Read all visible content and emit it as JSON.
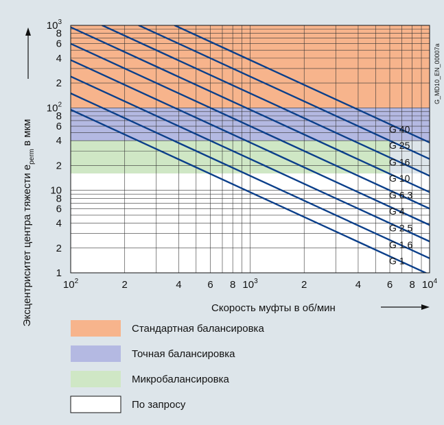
{
  "chart_data": {
    "type": "line",
    "x_scale": "log",
    "y_scale": "log",
    "xlim": [
      100,
      10000
    ],
    "ylim": [
      1,
      1000
    ],
    "xlabel": "Скорость муфты в об/мин",
    "ylabel_main": "Эксцентриситет центра тяжести e",
    "ylabel_sub": "perm",
    "ylabel_tail": " в мкм",
    "x_ticks": [
      {
        "value": 100,
        "base": "10",
        "exp": "2"
      },
      {
        "value": 200,
        "base": "2",
        "exp": ""
      },
      {
        "value": 400,
        "base": "4",
        "exp": ""
      },
      {
        "value": 600,
        "base": "6",
        "exp": ""
      },
      {
        "value": 800,
        "base": "8",
        "exp": ""
      },
      {
        "value": 1000,
        "base": "10",
        "exp": "3"
      },
      {
        "value": 2000,
        "base": "2",
        "exp": ""
      },
      {
        "value": 4000,
        "base": "4",
        "exp": ""
      },
      {
        "value": 6000,
        "base": "6",
        "exp": ""
      },
      {
        "value": 8000,
        "base": "8",
        "exp": ""
      },
      {
        "value": 10000,
        "base": "10",
        "exp": "4"
      }
    ],
    "y_ticks": [
      {
        "value": 1,
        "base": "1",
        "exp": ""
      },
      {
        "value": 2,
        "base": "2",
        "exp": ""
      },
      {
        "value": 4,
        "base": "4",
        "exp": ""
      },
      {
        "value": 6,
        "base": "6",
        "exp": ""
      },
      {
        "value": 8,
        "base": "8",
        "exp": ""
      },
      {
        "value": 10,
        "base": "10",
        "exp": ""
      },
      {
        "value": 20,
        "base": "2",
        "exp": ""
      },
      {
        "value": 40,
        "base": "4",
        "exp": ""
      },
      {
        "value": 60,
        "base": "6",
        "exp": ""
      },
      {
        "value": 80,
        "base": "8",
        "exp": ""
      },
      {
        "value": 100,
        "base": "10",
        "exp": "2"
      },
      {
        "value": 200,
        "base": "2",
        "exp": ""
      },
      {
        "value": 400,
        "base": "4",
        "exp": ""
      },
      {
        "value": 600,
        "base": "6",
        "exp": ""
      },
      {
        "value": 800,
        "base": "8",
        "exp": ""
      },
      {
        "value": 1000,
        "base": "10",
        "exp": "3"
      }
    ],
    "bands": [
      {
        "name": "Стандартная балансировка",
        "y_from": 100,
        "y_to": 1000,
        "x_to": 10000,
        "color": "#f7b48c"
      },
      {
        "name": "Точная балансировка",
        "y_from": 40,
        "y_to": 100,
        "x_to": 10000,
        "color": "#b4b9e2"
      },
      {
        "name": "Микробалансировка",
        "y_from": 16,
        "y_to": 40,
        "x_to": 6000,
        "color": "#cfe7c5"
      },
      {
        "name": "По запросу",
        "y_from": 1,
        "y_to": 16,
        "x_to": 10000,
        "color": "#ffffff"
      }
    ],
    "series": [
      {
        "name": "G 40",
        "points": [
          [
            380,
            1000
          ],
          [
            10000,
            38
          ]
        ]
      },
      {
        "name": "G 25",
        "points": [
          [
            240,
            1000
          ],
          [
            10000,
            24
          ]
        ]
      },
      {
        "name": "G 16",
        "points": [
          [
            150,
            1000
          ],
          [
            10000,
            15
          ]
        ]
      },
      {
        "name": "G 10",
        "points": [
          [
            100,
            950
          ],
          [
            10000,
            9.5
          ]
        ]
      },
      {
        "name": "G 6.3",
        "points": [
          [
            100,
            600
          ],
          [
            10000,
            6
          ]
        ]
      },
      {
        "name": "G 4",
        "points": [
          [
            100,
            380
          ],
          [
            10000,
            3.8
          ]
        ]
      },
      {
        "name": "G 2.5",
        "points": [
          [
            100,
            240
          ],
          [
            10000,
            2.4
          ]
        ]
      },
      {
        "name": "G 1.6",
        "points": [
          [
            100,
            150
          ],
          [
            10000,
            1.5
          ]
        ]
      },
      {
        "name": "G 1",
        "points": [
          [
            100,
            95
          ],
          [
            10000,
            0.95
          ]
        ]
      }
    ],
    "series_labels": [
      {
        "text": "G 40",
        "y": 55
      },
      {
        "text": "G 25",
        "y": 35
      },
      {
        "text": "G 16",
        "y": 22
      },
      {
        "text": "G 10",
        "y": 14
      },
      {
        "text": "G 6.3",
        "y": 8.8
      },
      {
        "text": "G 4",
        "y": 5.6
      },
      {
        "text": "G 2.5",
        "y": 3.5
      },
      {
        "text": "G 1.6",
        "y": 2.2
      },
      {
        "text": "G 1",
        "y": 1.4
      }
    ],
    "line_color": "#0b3f8a",
    "grid": true,
    "legend_position": "bottom",
    "source_code": "G_MD10_EN_00007a"
  },
  "legend": [
    {
      "label": "Стандартная балансировка",
      "color": "#f7b48c"
    },
    {
      "label": "Точная балансировка",
      "color": "#b4b9e2"
    },
    {
      "label": "Микробалансировка",
      "color": "#cfe7c5"
    },
    {
      "label": "По запросу",
      "color": "#ffffff"
    }
  ]
}
